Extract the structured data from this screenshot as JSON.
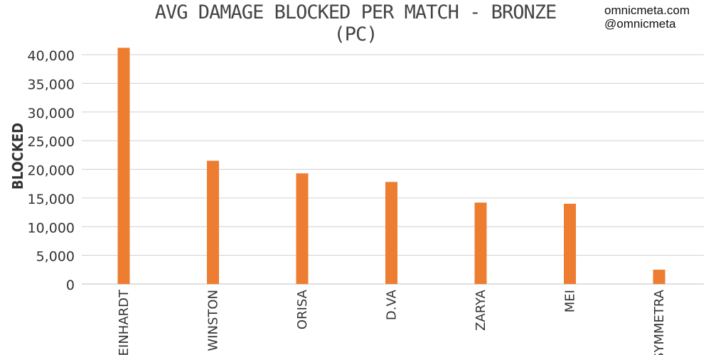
{
  "chart_data": {
    "type": "bar",
    "title": "AVG DAMAGE BLOCKED PER MATCH - BRONZE (PC)",
    "ylabel": "BLOCKED",
    "xlabel": "",
    "categories": [
      "REINHARDT",
      "WINSTON",
      "ORISA",
      "D.VA",
      "ZARYA",
      "MEI",
      "SYMMETRA"
    ],
    "values": [
      41200,
      21500,
      19300,
      17800,
      14200,
      14000,
      2500
    ],
    "ylim": [
      0,
      40000
    ],
    "yticks": [
      "0",
      "5,000",
      "10,000",
      "15,000",
      "20,000",
      "25,000",
      "30,000",
      "35,000",
      "40,000"
    ],
    "grid": true,
    "bar_color": "#ED7D31"
  },
  "brand": {
    "site": "omnicmeta.com",
    "handle": "@omnicmeta"
  }
}
